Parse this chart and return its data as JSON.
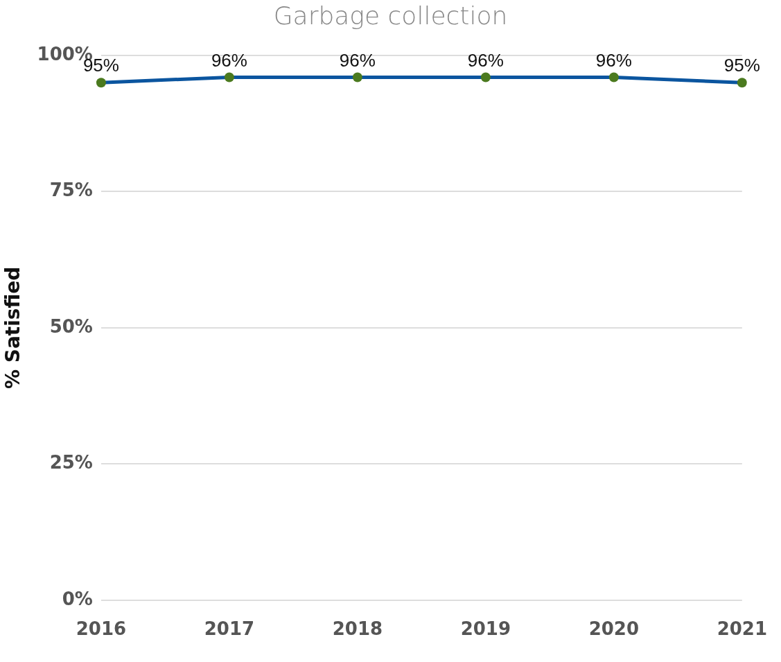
{
  "chart_data": {
    "type": "line",
    "title": "Garbage collection",
    "ylabel": "% Satisfied",
    "categories": [
      "2016",
      "2017",
      "2018",
      "2019",
      "2020",
      "2021"
    ],
    "series": [
      {
        "color": "#0b559f",
        "colors": [
          "#4b7a1f",
          "#4b7a1f",
          "#4b7a1f",
          "#4b7a1f",
          "#4b7a1f",
          "#4b7a1f"
        ],
        "values": [
          95,
          96,
          96,
          96,
          96,
          95
        ],
        "value_labels": [
          "95%",
          "96%",
          "96%",
          "96%",
          "96%",
          "95%"
        ]
      }
    ],
    "ylim": [
      0,
      100
    ],
    "yticks": [
      {
        "value": 0,
        "label": "0%"
      },
      {
        "value": 25,
        "label": "25%"
      },
      {
        "value": 50,
        "label": "50%"
      },
      {
        "value": 75,
        "label": "75%"
      },
      {
        "value": 100,
        "label": "100%"
      }
    ],
    "grid": "y",
    "legend": false,
    "marker": "circle",
    "line_style": "solid"
  }
}
